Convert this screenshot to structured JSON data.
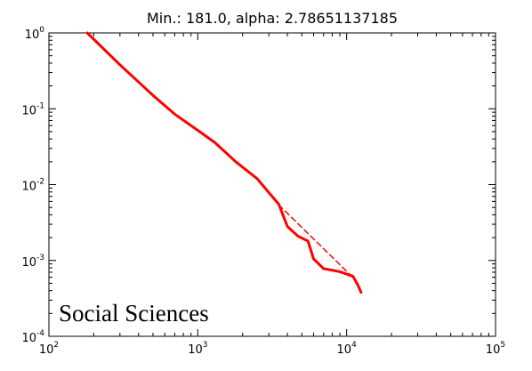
{
  "chart_data": {
    "type": "line",
    "title": "Min.: 181.0, alpha: 2.78651137185",
    "annotation": "Social Sciences",
    "xscale": "log",
    "yscale": "log",
    "xlim": [
      100,
      100000
    ],
    "ylim": [
      0.0001,
      1
    ],
    "grid": false,
    "x_ticks": [
      {
        "base": "10",
        "exp": "2",
        "value": 100
      },
      {
        "base": "10",
        "exp": "3",
        "value": 1000
      },
      {
        "base": "10",
        "exp": "4",
        "value": 10000
      },
      {
        "base": "10",
        "exp": "5",
        "value": 100000
      }
    ],
    "y_ticks": [
      {
        "base": "10",
        "exp": "0",
        "value": 1
      },
      {
        "base": "10",
        "exp": "-1",
        "value": 0.1
      },
      {
        "base": "10",
        "exp": "-2",
        "value": 0.01
      },
      {
        "base": "10",
        "exp": "-3",
        "value": 0.001
      },
      {
        "base": "10",
        "exp": "-4",
        "value": 0.0001
      }
    ],
    "series": [
      {
        "style": "solid",
        "color": "#ff0000",
        "x": [
          181,
          300,
          500,
          700,
          1000,
          1300,
          1800,
          2500,
          3500,
          4000,
          4700,
          5500,
          6000,
          7000,
          9000,
          11000,
          11800,
          12500
        ],
        "y": [
          1.0,
          0.38,
          0.15,
          0.085,
          0.052,
          0.036,
          0.02,
          0.012,
          0.0055,
          0.0028,
          0.0021,
          0.0018,
          0.00105,
          0.00078,
          0.00071,
          0.00062,
          0.00049,
          0.00038
        ]
      },
      {
        "style": "dashed",
        "color": "#ff0000",
        "x": [
          3500,
          11300
        ],
        "y": [
          0.0054,
          0.00057
        ]
      }
    ]
  }
}
